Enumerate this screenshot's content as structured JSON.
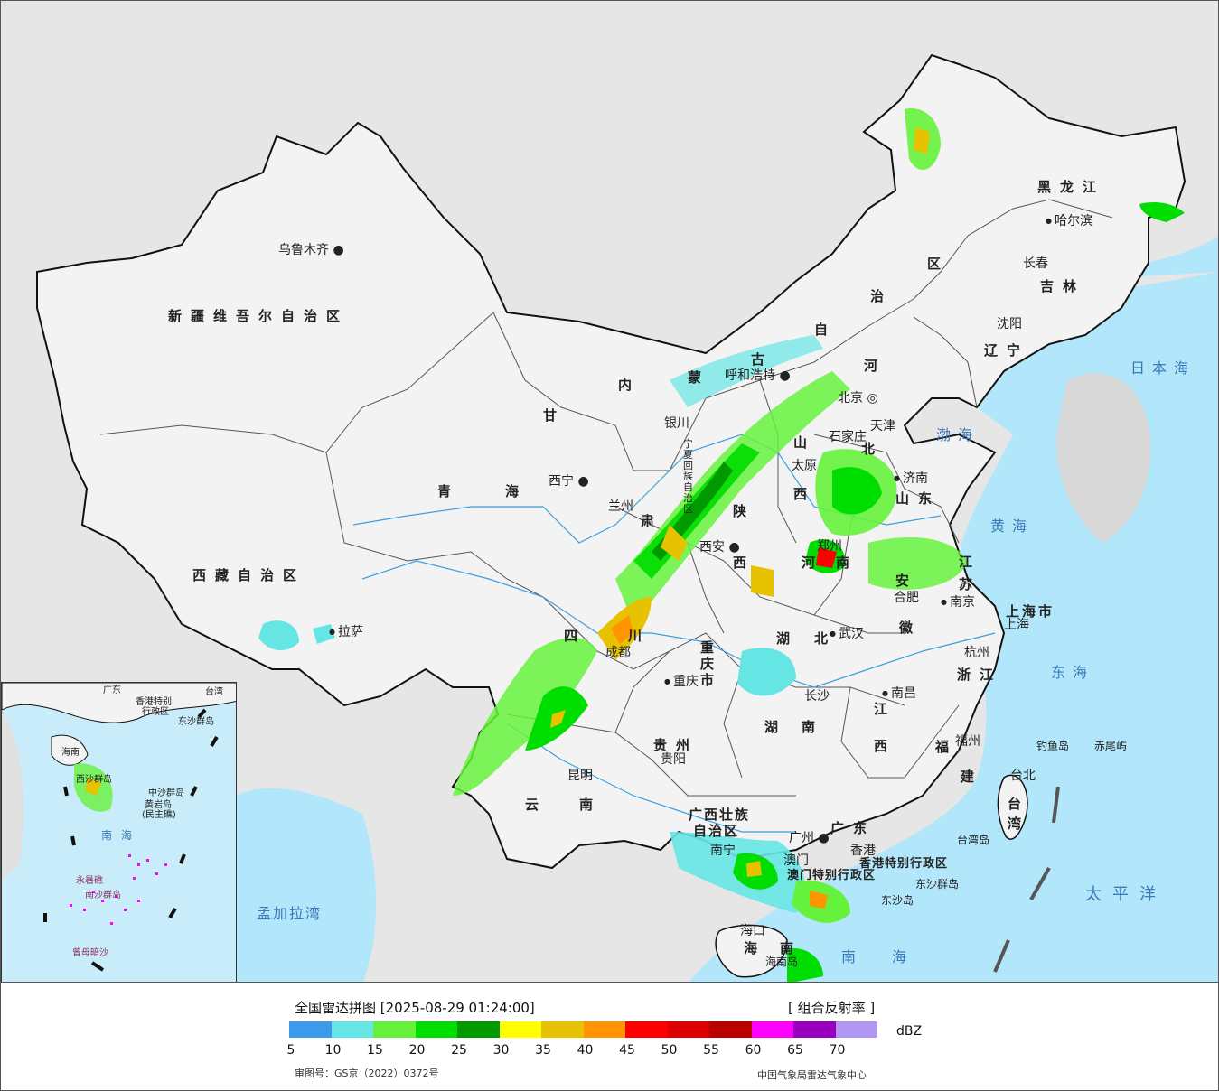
{
  "legend": {
    "title": "全国雷达拼图 [2025-08-29 01:24:00]",
    "product": "[ 组合反射率 ]",
    "unit": "dBZ",
    "review_number": "审图号：GS京（2022）0372号",
    "source": "中国气象局雷达气象中心",
    "colors": [
      "#3d99ea",
      "#66e5e5",
      "#66f23c",
      "#00dd00",
      "#009900",
      "#ffff00",
      "#e6c200",
      "#ff9300",
      "#ff0000",
      "#dd0000",
      "#bb0000",
      "#ff00ff",
      "#9900bb",
      "#b197f2"
    ],
    "ticks": [
      "5",
      "10",
      "15",
      "20",
      "25",
      "30",
      "35",
      "40",
      "45",
      "50",
      "55",
      "60",
      "65",
      "70"
    ]
  },
  "provinces": {
    "xinjiang": "新疆维吾尔自治区",
    "xizang": "西藏自治区",
    "qinghai_1": "青",
    "qinghai_2": "海",
    "gansu": "甘",
    "su": "肃",
    "nei_1": "内",
    "nei_2": "蒙",
    "nei_3": "古",
    "nei_4": "自",
    "nei_5": "治",
    "nei_6": "区",
    "ningxia": "宁夏回族自治区",
    "heilongjiang": "黑龙江",
    "jilin": "吉林",
    "liaoning": "辽宁",
    "hebei_1": "河",
    "hebei_2": "北",
    "shanxi_1": "山",
    "shanxi_2": "西",
    "shaanxi_1": "陕",
    "shaanxi_2": "西",
    "shandong": "山东",
    "henan_1": "河",
    "henan_2": "南",
    "jiangsu_1": "江",
    "jiangsu_2": "苏",
    "anhui_1": "安",
    "anhui_2": "徽",
    "shanghai": "上海市",
    "zhejiang": "浙江",
    "hubei_1": "湖",
    "hubei_2": "北",
    "sichuan_1": "四",
    "sichuan_2": "川",
    "chongqing_1": "重",
    "chongqing_2": "庆",
    "chongqing_3": "市",
    "guizhou": "贵州",
    "hunan_1": "湖",
    "hunan_2": "南",
    "jiangxi_1": "江",
    "jiangxi_2": "西",
    "fujian_1": "福",
    "fujian_2": "建",
    "yunnan_1": "云",
    "yunnan_2": "南",
    "guangxi_1": "广西壮族",
    "guangxi_2": "自治区",
    "guangdong": "广东",
    "hainan_1": "海",
    "hainan_2": "南",
    "taiwan_1": "台",
    "taiwan_2": "湾",
    "hk": "香港特别行政区",
    "macao": "澳门特别行政区",
    "beijing": "北京",
    "tianjin": "天津"
  },
  "cities": {
    "urumqi": "乌鲁木齐",
    "lhasa": "拉萨",
    "xining": "西宁",
    "lanzhou": "兰州",
    "yinchuan": "银川",
    "hohhot": "呼和浩特",
    "beijing": "北京",
    "tianjin": "天津",
    "shijiazhuang": "石家庄",
    "taiyuan": "太原",
    "jinan": "济南",
    "xian": "西安",
    "zhengzhou": "郑州",
    "hefei": "合肥",
    "nanjing": "南京",
    "shanghai": "上海",
    "hangzhou": "杭州",
    "wuhan": "武汉",
    "chengdu": "成都",
    "chongqing": "重庆",
    "guiyang": "贵阳",
    "changsha": "长沙",
    "nanchang": "南昌",
    "fuzhou": "福州",
    "kunming": "昆明",
    "nanning": "南宁",
    "guangzhou": "广州",
    "hongkong": "香港",
    "macao": "澳门",
    "haikou": "海口",
    "taibei": "台北",
    "harbin": "哈尔滨",
    "changchun": "长春",
    "shenyang": "沈阳"
  },
  "seas": {
    "japan_sea": "日本海",
    "bohai": "渤海",
    "yellow_sea": "黄海",
    "east_sea": "东海",
    "south_sea": "南海",
    "pacific": "太平洋",
    "bengal": "孟加拉湾"
  },
  "islands": {
    "diaoyu": "钓鱼岛",
    "chiwei": "赤尾屿",
    "taiwan_island": "台湾岛",
    "dongsha": "东沙群岛",
    "dongsha_island": "东沙岛",
    "hainan_island": "海南岛"
  },
  "inset": {
    "south_sea": "南海",
    "zhongsha": "中沙群岛",
    "huangyan": "黄岩岛",
    "huangyan_2": "(民主礁)",
    "yongshu": "永暑礁",
    "nansha": "南沙群岛",
    "zengmu": "曾母暗沙",
    "xisha": "西沙群岛",
    "hainan": "海南",
    "guangdong": "广东",
    "taiwan": "台湾",
    "hk": "香港特别",
    "hk2": "行政区",
    "dongsha": "东沙群岛"
  }
}
